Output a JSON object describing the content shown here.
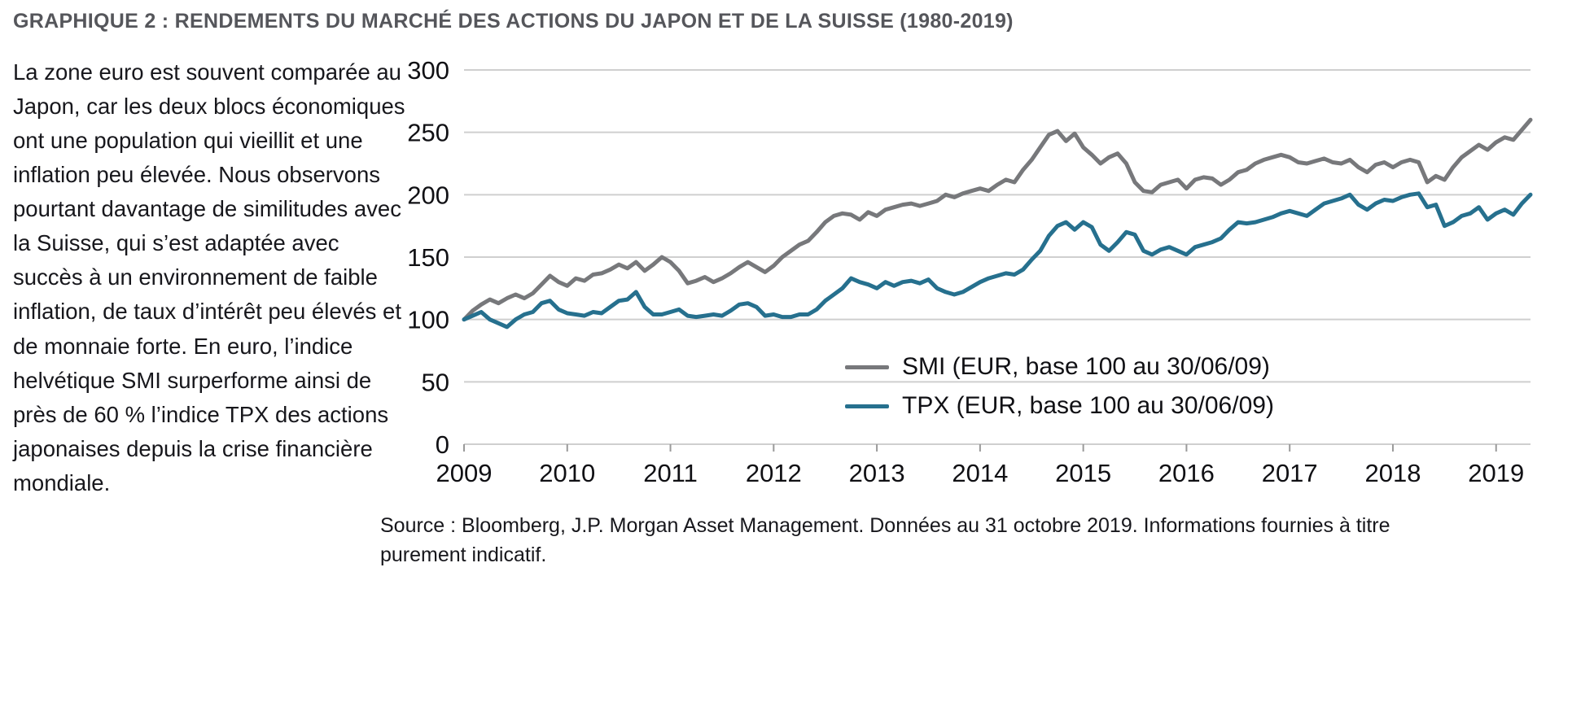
{
  "page": {
    "title": "GRAPHIQUE 2 : RENDEMENTS DU MARCHÉ DES ACTIONS DU JAPON ET DE LA SUISSE (1980-2019)",
    "commentary": "La zone euro est souvent comparée au Japon, car les deux blocs économiques ont une population qui vieillit et une inflation peu élevée. Nous observons pourtant davantage de similitudes avec la Suisse, qui s’est adaptée avec succès à un environnement de faible inflation, de taux d’intérêt peu élevés et de monnaie forte. En euro, l’indice helvétique SMI surperforme ainsi de près de 60 % l’indice TPX des actions japonaises depuis la crise financière mondiale.",
    "source_note": "Source : Bloomberg, J.P. Morgan Asset Management. Données au 31 octobre 2019. Informations fournies à titre purement indicatif."
  },
  "chart_data": {
    "type": "line",
    "title": "",
    "xlabel": "",
    "ylabel": "",
    "ylim": [
      0,
      300
    ],
    "y_ticks": [
      0,
      50,
      100,
      150,
      200,
      250,
      300
    ],
    "x_tick_labels": [
      "2009",
      "2010",
      "2011",
      "2012",
      "2013",
      "2014",
      "2015",
      "2016",
      "2017",
      "2018",
      "2019"
    ],
    "x_unit": "monthly, June 2009 to October 2019, base 100 au 30/06/09",
    "grid": "horizontal",
    "legend_position": "inside-right",
    "series": [
      {
        "name": "SMI (EUR, base 100 au 30/06/09)",
        "color": "#77787b",
        "values": [
          100,
          107,
          112,
          116,
          113,
          117,
          120,
          117,
          121,
          128,
          135,
          130,
          127,
          133,
          131,
          136,
          137,
          140,
          144,
          141,
          146,
          139,
          144,
          150,
          146,
          139,
          129,
          131,
          134,
          130,
          133,
          137,
          142,
          146,
          142,
          138,
          143,
          150,
          155,
          160,
          163,
          170,
          178,
          183,
          185,
          184,
          180,
          186,
          183,
          188,
          190,
          192,
          193,
          191,
          193,
          195,
          200,
          198,
          201,
          203,
          205,
          203,
          208,
          212,
          210,
          220,
          228,
          238,
          248,
          251,
          243,
          249,
          238,
          232,
          225,
          230,
          233,
          225,
          210,
          203,
          202,
          208,
          210,
          212,
          205,
          212,
          214,
          213,
          208,
          212,
          218,
          220,
          225,
          228,
          230,
          232,
          230,
          226,
          225,
          227,
          229,
          226,
          225,
          228,
          222,
          218,
          224,
          226,
          222,
          226,
          228,
          226,
          210,
          215,
          212,
          222,
          230,
          235,
          240,
          236,
          242,
          246,
          244,
          252,
          260
        ]
      },
      {
        "name": "TPX (EUR, base 100 au 30/06/09)",
        "color": "#26708e",
        "values": [
          100,
          103,
          106,
          100,
          97,
          94,
          100,
          104,
          106,
          113,
          115,
          108,
          105,
          104,
          103,
          106,
          105,
          110,
          115,
          116,
          122,
          110,
          104,
          104,
          106,
          108,
          103,
          102,
          103,
          104,
          103,
          107,
          112,
          113,
          110,
          103,
          104,
          102,
          102,
          104,
          104,
          108,
          115,
          120,
          125,
          133,
          130,
          128,
          125,
          130,
          127,
          130,
          131,
          129,
          132,
          125,
          122,
          120,
          122,
          126,
          130,
          133,
          135,
          137,
          136,
          140,
          148,
          155,
          167,
          175,
          178,
          172,
          178,
          174,
          160,
          155,
          162,
          170,
          168,
          155,
          152,
          156,
          158,
          155,
          152,
          158,
          160,
          162,
          165,
          172,
          178,
          177,
          178,
          180,
          182,
          185,
          187,
          185,
          183,
          188,
          193,
          195,
          197,
          200,
          192,
          188,
          193,
          196,
          195,
          198,
          200,
          201,
          190,
          192,
          175,
          178,
          183,
          185,
          190,
          180,
          185,
          188,
          184,
          193,
          200
        ]
      }
    ]
  }
}
